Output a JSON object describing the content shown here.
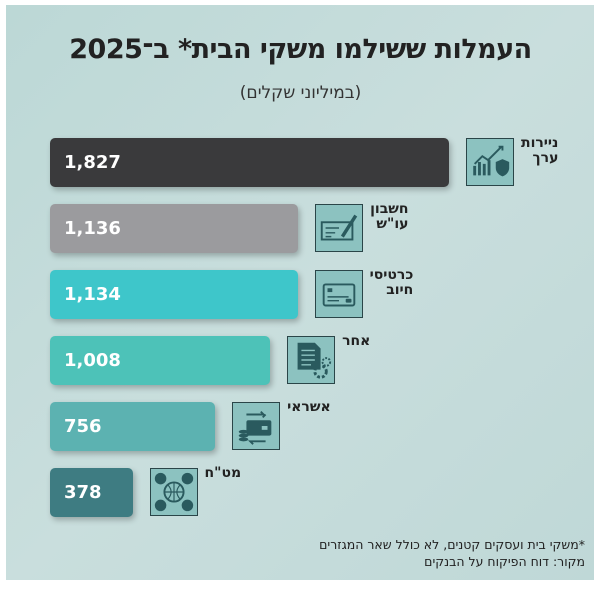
{
  "chart_data": {
    "type": "bar",
    "orientation": "horizontal",
    "title": "העמלות ששילמו משקי הבית* ב־2025",
    "subtitle": "(במיליוני שקלים)",
    "categories": [
      "ניירות\nערך",
      "חשבון\nעו\"ש",
      "כרטיסי\nחיוב",
      "אחר",
      "אשראי",
      "מט\"ח"
    ],
    "values": [
      1827,
      1136,
      1134,
      1008,
      756,
      378
    ],
    "value_labels": [
      "1,827",
      "1,136",
      "1,134",
      "1,008",
      "756",
      "378"
    ],
    "colors": [
      "#3a3a3c",
      "#9b9b9e",
      "#3ec6ca",
      "#4dc2b8",
      "#5cb2b1",
      "#3e7c82"
    ],
    "icons": [
      "chart-shield-icon",
      "check-pen-icon",
      "credit-card-icon",
      "document-gear-icon",
      "card-exchange-icon",
      "currency-globe-icon"
    ],
    "xlim": [
      0,
      1827
    ],
    "grid": false
  },
  "notes": {
    "footnote": "*משקי בית ועסקים קטנים, לא כולל שאר המגזרים",
    "source": "מקור: דוח הפיקוח על הבנקים"
  }
}
